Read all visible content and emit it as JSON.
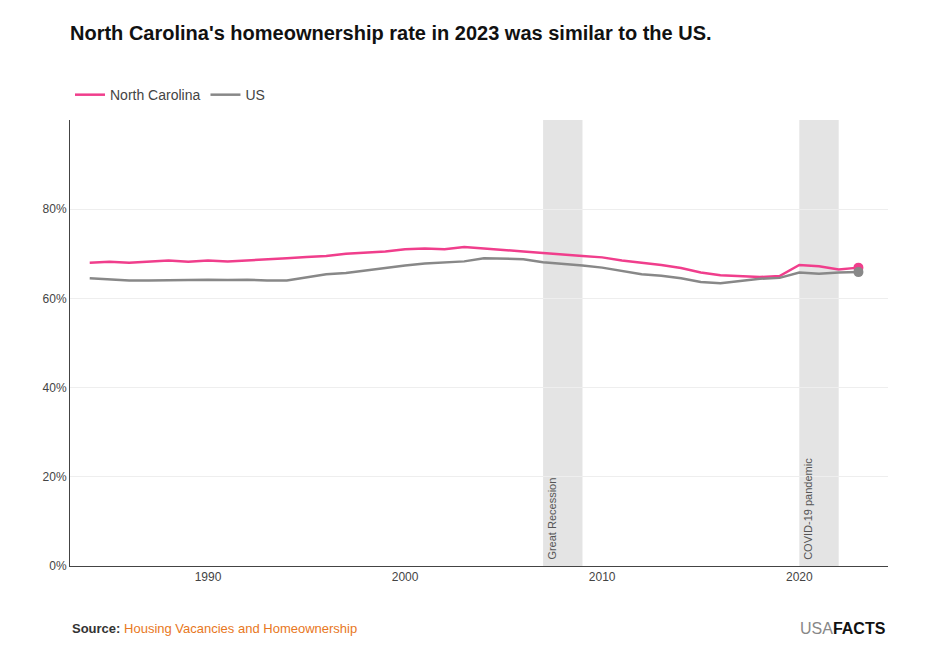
{
  "chart_data": {
    "type": "line",
    "title": "North Carolina's homeownership rate in 2023 was similar to the US.",
    "x": [
      1984,
      1985,
      1986,
      1987,
      1988,
      1989,
      1990,
      1991,
      1992,
      1993,
      1994,
      1995,
      1996,
      1997,
      1998,
      1999,
      2000,
      2001,
      2002,
      2003,
      2004,
      2005,
      2006,
      2007,
      2008,
      2009,
      2010,
      2011,
      2012,
      2013,
      2014,
      2015,
      2016,
      2017,
      2018,
      2019,
      2020,
      2021,
      2022,
      2023
    ],
    "series": [
      {
        "name": "North Carolina",
        "color": "#F03E8C",
        "values": [
          68.0,
          68.2,
          68.0,
          68.3,
          68.5,
          68.2,
          68.5,
          68.3,
          68.5,
          68.8,
          69.0,
          69.3,
          69.5,
          70.0,
          70.2,
          70.5,
          71.0,
          71.2,
          71.0,
          71.5,
          71.2,
          70.8,
          70.5,
          70.2,
          69.8,
          69.5,
          69.2,
          68.5,
          68.0,
          67.5,
          66.8,
          65.8,
          65.2,
          65.0,
          64.8,
          65.0,
          67.5,
          67.2,
          66.5,
          66.9
        ]
      },
      {
        "name": "US",
        "color": "#888888",
        "values": [
          64.5,
          64.3,
          64.0,
          64.0,
          64.0,
          64.1,
          64.2,
          64.1,
          64.2,
          64.0,
          64.0,
          64.7,
          65.4,
          65.7,
          66.3,
          66.8,
          67.4,
          67.8,
          68.0,
          68.3,
          69.0,
          68.9,
          68.8,
          68.1,
          67.8,
          67.4,
          66.9,
          66.1,
          65.4,
          65.1,
          64.5,
          63.7,
          63.4,
          63.9,
          64.4,
          64.6,
          65.8,
          65.5,
          65.8,
          65.9
        ]
      }
    ],
    "shaded_regions": [
      {
        "start": 2007,
        "end": 2009,
        "label": "Great Recession",
        "color": "#d8d8d8"
      },
      {
        "start": 2020,
        "end": 2022,
        "label": "COVID-19 pandemic",
        "color": "#d8d8d8"
      }
    ],
    "xlim": [
      1983,
      2024.5
    ],
    "xticks": [
      1990,
      2000,
      2010,
      2020
    ],
    "ylim": [
      0,
      100
    ],
    "yticks": [
      {
        "value": 0,
        "label": "0%"
      },
      {
        "value": 20,
        "label": "20%"
      },
      {
        "value": 40,
        "label": "40%"
      },
      {
        "value": 60,
        "label": "60%"
      },
      {
        "value": 80,
        "label": "80%"
      }
    ],
    "grid": true,
    "legend": "top left",
    "source_label": "Source:",
    "source_text": "Housing Vacancies and Homeownership",
    "brand": [
      "USA",
      "FACTS"
    ]
  }
}
